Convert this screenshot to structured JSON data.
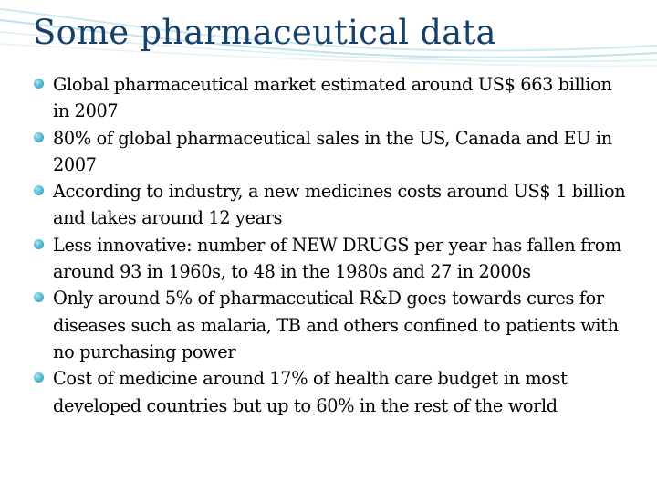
{
  "slide": {
    "title": "Some pharmaceutical data",
    "bullets": [
      "Global pharmaceutical market estimated around US$ 663 billion in 2007",
      "80% of global pharmaceutical sales in the US, Canada and EU in 2007",
      "According to industry, a new medicines costs around US$ 1 billion and takes around 12 years",
      "Less innovative: number of NEW DRUGS per year has fallen from around 93 in 1960s, to 48 in the 1980s and 27 in 2000s",
      "Only around 5% of pharmaceutical R&D goes towards cures for diseases such as malaria, TB and others confined to patients with no purchasing power",
      "Cost of medicine around 17% of health care budget in most developed countries but up to 60% in the rest of the world"
    ]
  },
  "colors": {
    "title": "#17406a",
    "bullet_marker": "#4db6cf",
    "decor_waves": "#bfe3ee"
  },
  "icons": {
    "bullet_marker": "round-bullet-icon"
  }
}
